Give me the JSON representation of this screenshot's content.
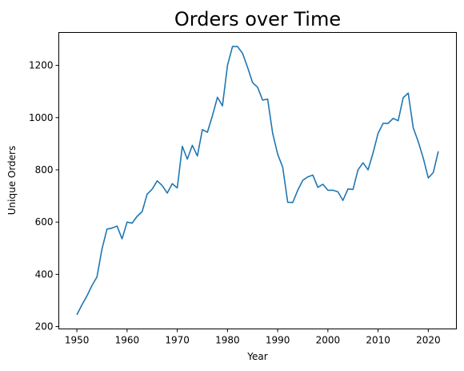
{
  "chart_data": {
    "type": "line",
    "title": "Orders over Time",
    "xlabel": "Year",
    "ylabel": "Unique Orders",
    "xlim": [
      1946.4,
      2025.6
    ],
    "ylim": [
      191,
      1326
    ],
    "xticks": [
      1950,
      1960,
      1970,
      1980,
      1990,
      2000,
      2010,
      2020
    ],
    "yticks": [
      200,
      400,
      600,
      800,
      1000,
      1200
    ],
    "grid": false,
    "series": [
      {
        "color": "#1f77b4",
        "x": [
          1950,
          1951,
          1952,
          1953,
          1954,
          1955,
          1956,
          1957,
          1958,
          1959,
          1960,
          1961,
          1962,
          1963,
          1964,
          1965,
          1966,
          1967,
          1968,
          1969,
          1970,
          1971,
          1972,
          1973,
          1974,
          1975,
          1976,
          1977,
          1978,
          1979,
          1980,
          1981,
          1982,
          1983,
          1984,
          1985,
          1986,
          1987,
          1988,
          1989,
          1990,
          1991,
          1992,
          1993,
          1994,
          1995,
          1996,
          1997,
          1998,
          1999,
          2000,
          2001,
          2002,
          2003,
          2004,
          2005,
          2006,
          2007,
          2008,
          2009,
          2010,
          2011,
          2012,
          2013,
          2014,
          2015,
          2016,
          2017,
          2018,
          2019,
          2020,
          2021,
          2022
        ],
        "y": [
          245,
          283,
          317,
          357,
          390,
          497,
          573,
          577,
          585,
          536,
          600,
          596,
          622,
          640,
          707,
          726,
          758,
          740,
          711,
          747,
          731,
          890,
          841,
          894,
          853,
          954,
          944,
          1007,
          1078,
          1045,
          1200,
          1272,
          1272,
          1246,
          1193,
          1134,
          1116,
          1067,
          1071,
          940,
          860,
          810,
          676,
          675,
          722,
          760,
          773,
          780,
          733,
          745,
          722,
          722,
          716,
          683,
          727,
          725,
          800,
          827,
          800,
          865,
          940,
          978,
          978,
          997,
          988,
          1076,
          1094,
          961,
          908,
          845,
          769,
          790,
          871
        ]
      }
    ]
  }
}
